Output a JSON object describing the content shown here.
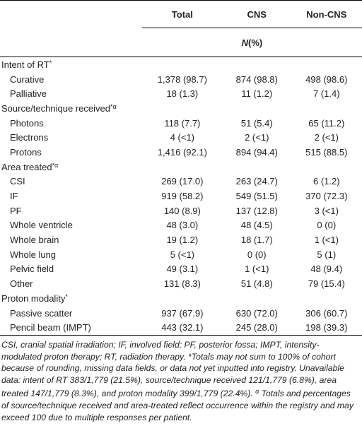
{
  "header": {
    "col0": "",
    "col1": "Total",
    "col2": "CNS",
    "col3": "Non-CNS",
    "unit_prefix": "N",
    "unit_suffix": "(%)"
  },
  "sections": [
    {
      "label": "Intent of RT",
      "mark": "*",
      "rows": [
        {
          "label": "Curative",
          "total": "1,378 (98.7)",
          "cns": "874 (98.8)",
          "noncns": "498 (98.6)"
        },
        {
          "label": "Palliative",
          "total": "18 (1.3)",
          "cns": "11 (1.2)",
          "noncns": "7 (1.4)"
        }
      ]
    },
    {
      "label": "Source/technique received",
      "mark": "*α",
      "rows": [
        {
          "label": "Photons",
          "total": "118 (7.7)",
          "cns": "51 (5.4)",
          "noncns": "65 (11.2)"
        },
        {
          "label": "Electrons",
          "total": "4 (<1)",
          "cns": "2 (<1)",
          "noncns": "2 (<1)"
        },
        {
          "label": "Protons",
          "total": "1,416 (92.1)",
          "cns": "894 (94.4)",
          "noncns": "515 (88.5)"
        }
      ]
    },
    {
      "label": "Area treated",
      "mark": "*α",
      "rows": [
        {
          "label": "CSI",
          "total": "269 (17.0)",
          "cns": "263 (24.7)",
          "noncns": "6 (1.2)"
        },
        {
          "label": "IF",
          "total": "919 (58.2)",
          "cns": "549 (51.5)",
          "noncns": "370 (72.3)"
        },
        {
          "label": "PF",
          "total": "140 (8.9)",
          "cns": "137 (12.8)",
          "noncns": "3 (<1)"
        },
        {
          "label": "Whole ventricle",
          "total": "48 (3.0)",
          "cns": "48 (4.5)",
          "noncns": "0 (0)"
        },
        {
          "label": "Whole brain",
          "total": "19 (1.2)",
          "cns": "18 (1.7)",
          "noncns": "1 (<1)"
        },
        {
          "label": "Whole lung",
          "total": "5 (<1)",
          "cns": "0 (0)",
          "noncns": "5 (1)"
        },
        {
          "label": "Pelvic field",
          "total": "49 (3.1)",
          "cns": "1 (<1)",
          "noncns": "48 (9.4)"
        },
        {
          "label": "Other",
          "total": "131 (8.3)",
          "cns": "51 (4.8)",
          "noncns": "79 (15.4)"
        }
      ]
    },
    {
      "label": "Proton modality",
      "mark": "*",
      "rows": [
        {
          "label": "Passive scatter",
          "total": "937 (67.9)",
          "cns": "630 (72.0)",
          "noncns": "306 (60.7)"
        },
        {
          "label": "Pencil beam (IMPT)",
          "total": "443 (32.1)",
          "cns": "245 (28.0)",
          "noncns": "198 (39.3)"
        }
      ]
    }
  ],
  "footnote": {
    "main": "CSI, cranial spatial irradiation; IF, involved field; PF, posterior fossa; IMPT, intensity-modulated proton therapy; RT, radiation therapy. *Totals may not sum to 100% of cohort because of rounding, missing data fields, or data not yet inputted into registry. Unavailable data: intent of RT 383/1,779 (21.5%), source/technique received 121/1,779 (6.8%), area treated 147/1,779 (8.3%), and proton modality 399/1,779 (22.4%).",
    "alpha_mark": "α",
    "alpha_text": " Totals and percentages of source/technique received and area-treated reflect occurrence within the registry and may exceed 100 due to multiple responses per patient."
  }
}
